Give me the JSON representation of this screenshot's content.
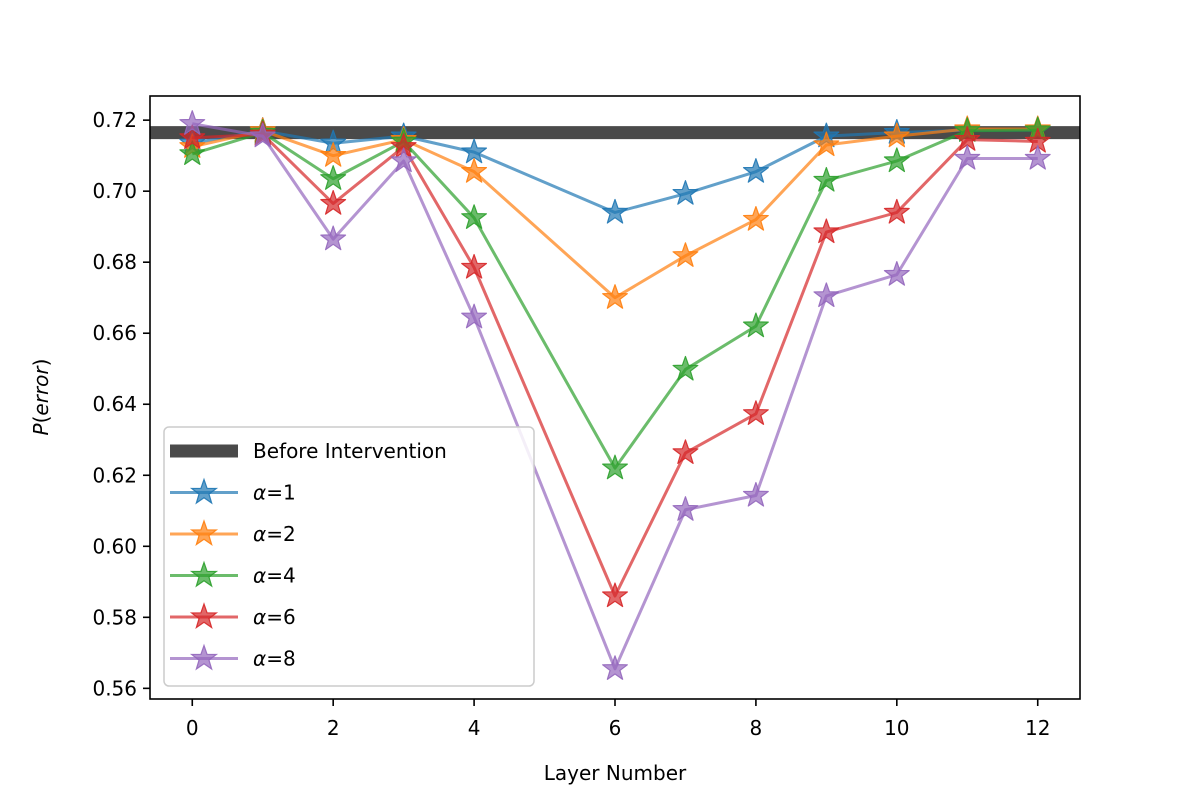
{
  "chart_data": {
    "type": "line",
    "title": "",
    "xlabel": "Layer Number",
    "ylabel": "P(error)",
    "ylabel_parts": {
      "main": "P",
      "open": "(",
      "italic": "error",
      "close": ")"
    },
    "xlim": [
      -0.6,
      12.6
    ],
    "ylim": [
      0.557,
      0.7268
    ],
    "xticks": [
      0,
      2,
      4,
      6,
      8,
      10,
      12
    ],
    "xtick_labels": [
      "0",
      "2",
      "4",
      "6",
      "8",
      "10",
      "12"
    ],
    "yticks": [
      0.56,
      0.58,
      0.6,
      0.62,
      0.64,
      0.66,
      0.68,
      0.7,
      0.72
    ],
    "ytick_labels": [
      "0.56",
      "0.58",
      "0.60",
      "0.62",
      "0.64",
      "0.66",
      "0.68",
      "0.70",
      "0.72"
    ],
    "grid": false,
    "legend_position": "lower-left",
    "baseline": {
      "name": "Before Intervention",
      "value": 0.7165,
      "color": "#4a4a4a"
    },
    "x": [
      0,
      1,
      2,
      3,
      4,
      6,
      7,
      8,
      9,
      10,
      11,
      12
    ],
    "series": [
      {
        "name": "α=1",
        "symbol": "α",
        "suffix": "=1",
        "color": "#1f77b4",
        "values": [
          0.7135,
          0.717,
          0.7135,
          0.7155,
          0.711,
          0.694,
          0.6993,
          0.7055,
          0.7155,
          0.7165,
          0.7172,
          0.7172
        ]
      },
      {
        "name": "α=2",
        "symbol": "α",
        "suffix": "=2",
        "color": "#ff7f0e",
        "values": [
          0.7125,
          0.717,
          0.71,
          0.7145,
          0.7055,
          0.67,
          0.6818,
          0.692,
          0.713,
          0.7155,
          0.7175,
          0.7175
        ]
      },
      {
        "name": "α=4",
        "symbol": "α",
        "suffix": "=4",
        "color": "#2ca02c",
        "values": [
          0.7105,
          0.7165,
          0.7035,
          0.714,
          0.6925,
          0.622,
          0.6498,
          0.662,
          0.703,
          0.7085,
          0.717,
          0.7172
        ]
      },
      {
        "name": "α=6",
        "symbol": "α",
        "suffix": "=6",
        "color": "#d62728",
        "values": [
          0.715,
          0.716,
          0.6965,
          0.7125,
          0.6785,
          0.586,
          0.6263,
          0.6373,
          0.6885,
          0.694,
          0.7145,
          0.714
        ]
      },
      {
        "name": "α=8",
        "symbol": "α",
        "suffix": "=8",
        "color": "#9467bd",
        "values": [
          0.719,
          0.7155,
          0.6865,
          0.7085,
          0.6645,
          0.5655,
          0.6103,
          0.6143,
          0.6705,
          0.6765,
          0.7092,
          0.7092
        ]
      }
    ]
  }
}
